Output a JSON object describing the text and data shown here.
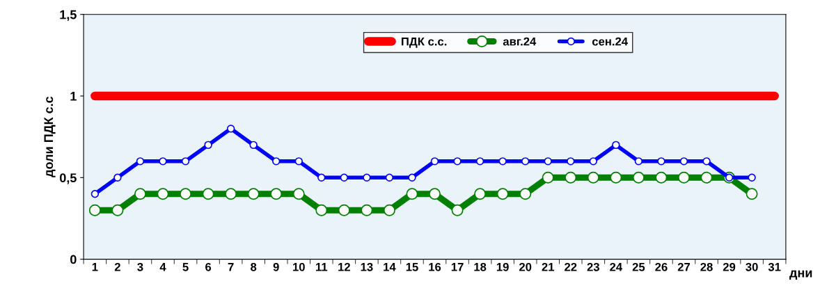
{
  "chart_data": {
    "type": "line",
    "categories": [
      "1",
      "2",
      "3",
      "4",
      "5",
      "6",
      "7",
      "8",
      "9",
      "10",
      "11",
      "12",
      "13",
      "14",
      "15",
      "16",
      "17",
      "18",
      "19",
      "20",
      "21",
      "22",
      "23",
      "24",
      "25",
      "26",
      "27",
      "28",
      "29",
      "30",
      "31"
    ],
    "series": [
      {
        "name": "ПДК с.с.",
        "color": "#ff0000",
        "marker": "none",
        "values": [
          1,
          1,
          1,
          1,
          1,
          1,
          1,
          1,
          1,
          1,
          1,
          1,
          1,
          1,
          1,
          1,
          1,
          1,
          1,
          1,
          1,
          1,
          1,
          1,
          1,
          1,
          1,
          1,
          1,
          1,
          1
        ]
      },
      {
        "name": "авг.24",
        "color": "#008000",
        "values": [
          0.3,
          0.3,
          0.4,
          0.4,
          0.4,
          0.4,
          0.4,
          0.4,
          0.4,
          0.4,
          0.3,
          0.3,
          0.3,
          0.3,
          0.4,
          0.4,
          0.3,
          0.4,
          0.4,
          0.4,
          0.5,
          0.5,
          0.5,
          0.5,
          0.5,
          0.5,
          0.5,
          0.5,
          0.5,
          0.4,
          null
        ]
      },
      {
        "name": "сен.24",
        "color": "#0000ff",
        "values": [
          0.4,
          0.5,
          0.6,
          0.6,
          0.6,
          0.7,
          0.8,
          0.7,
          0.6,
          0.6,
          0.5,
          0.5,
          0.5,
          0.5,
          0.5,
          0.6,
          0.6,
          0.6,
          0.6,
          0.6,
          0.6,
          0.6,
          0.6,
          0.7,
          0.6,
          0.6,
          0.6,
          0.6,
          0.5,
          0.5,
          null
        ]
      }
    ],
    "ylabel": "доли ПДК с.с",
    "xlabel": "дни",
    "ylim": [
      0,
      1.5
    ],
    "yticks": [
      0,
      {
        "value": 0.5,
        "label": "0,5"
      },
      1,
      {
        "value": 1.5,
        "label": "1,5"
      }
    ],
    "marker": "circle",
    "line_style": "solid",
    "grid": false,
    "legend": "top right"
  }
}
